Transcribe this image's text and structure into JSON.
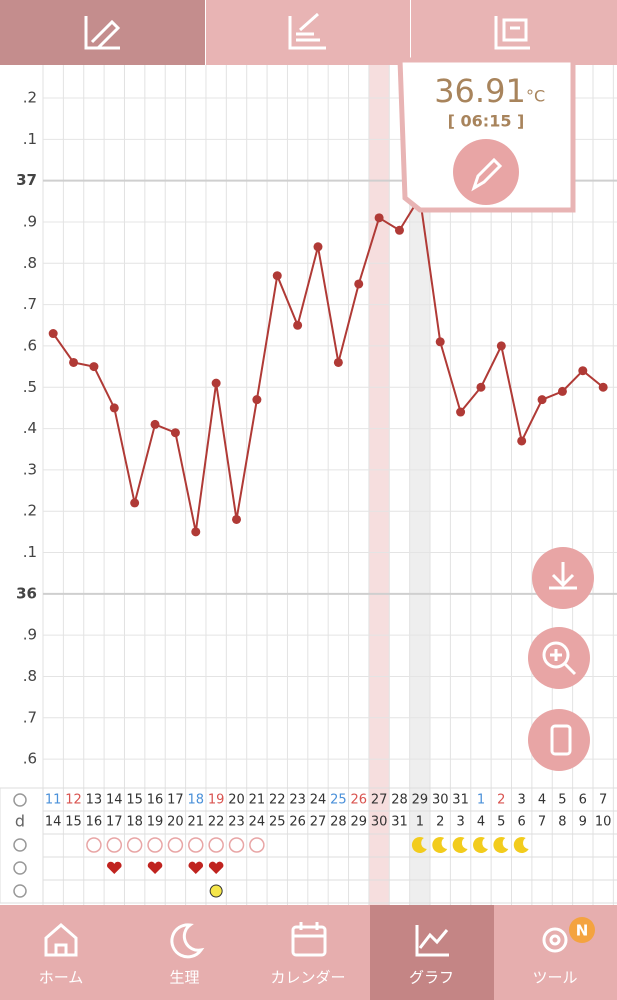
{
  "chart_data": {
    "type": "line",
    "categories": [
      "11",
      "12",
      "13",
      "14",
      "15",
      "16",
      "17",
      "18",
      "19",
      "20",
      "21",
      "22",
      "23",
      "24",
      "25",
      "26",
      "27",
      "28",
      "29",
      "30",
      "31",
      "1",
      "2",
      "3",
      "4",
      "5",
      "6",
      "7"
    ],
    "category_colors": [
      "#4a90d9",
      "#d9534f",
      "#333",
      "#333",
      "#333",
      "#333",
      "#333",
      "#4a90d9",
      "#d9534f",
      "#333",
      "#333",
      "#333",
      "#333",
      "#333",
      "#4a90d9",
      "#d9534f",
      "#333",
      "#333",
      "#333",
      "#333",
      "#333",
      "#4a90d9",
      "#d9534f",
      "#333",
      "#333",
      "#333",
      "#333",
      "#333"
    ],
    "cycle_label": "d",
    "cycle_days": [
      "14",
      "15",
      "16",
      "17",
      "18",
      "19",
      "20",
      "21",
      "22",
      "23",
      "24",
      "25",
      "26",
      "27",
      "28",
      "29",
      "30",
      "31",
      "1",
      "2",
      "3",
      "4",
      "5",
      "6",
      "7",
      "8",
      "9",
      "10"
    ],
    "series": [
      {
        "color": "#b03a36",
        "values": [
          36.63,
          36.56,
          36.55,
          36.45,
          36.22,
          36.41,
          36.39,
          36.15,
          36.51,
          36.18,
          36.47,
          36.77,
          36.65,
          36.84,
          36.56,
          36.75,
          36.91,
          36.88,
          36.96,
          36.61,
          36.44,
          36.5,
          36.6,
          36.37,
          36.47,
          36.49,
          36.54,
          36.5
        ]
      }
    ],
    "ylim": [
      35.53,
      37.28
    ],
    "yticks": [
      {
        "value": 37.2,
        "label": ".2"
      },
      {
        "value": 37.1,
        "label": ".1"
      },
      37,
      {
        "value": 36.9,
        "label": ".9"
      },
      {
        "value": 36.8,
        "label": ".8"
      },
      {
        "value": 36.7,
        "label": ".7"
      },
      {
        "value": 36.6,
        "label": ".6"
      },
      {
        "value": 36.5,
        "label": ".5"
      },
      {
        "value": 36.4,
        "label": ".4"
      },
      {
        "value": 36.3,
        "label": ".3"
      },
      {
        "value": 36.2,
        "label": ".2"
      },
      {
        "value": 36.1,
        "label": ".1"
      },
      36,
      {
        "value": 35.9,
        "label": ".9"
      },
      {
        "value": 35.8,
        "label": ".8"
      },
      {
        "value": 35.7,
        "label": ".7"
      },
      {
        "value": 35.6,
        "label": ".6"
      }
    ],
    "grid": true
  },
  "popup": {
    "value": "36.91",
    "unit": "°C",
    "time": "[ 06:15 ]"
  },
  "nav": {
    "items": [
      "ホーム",
      "生理",
      "カレンダー",
      "グラフ",
      "ツール"
    ],
    "badge": "N"
  }
}
